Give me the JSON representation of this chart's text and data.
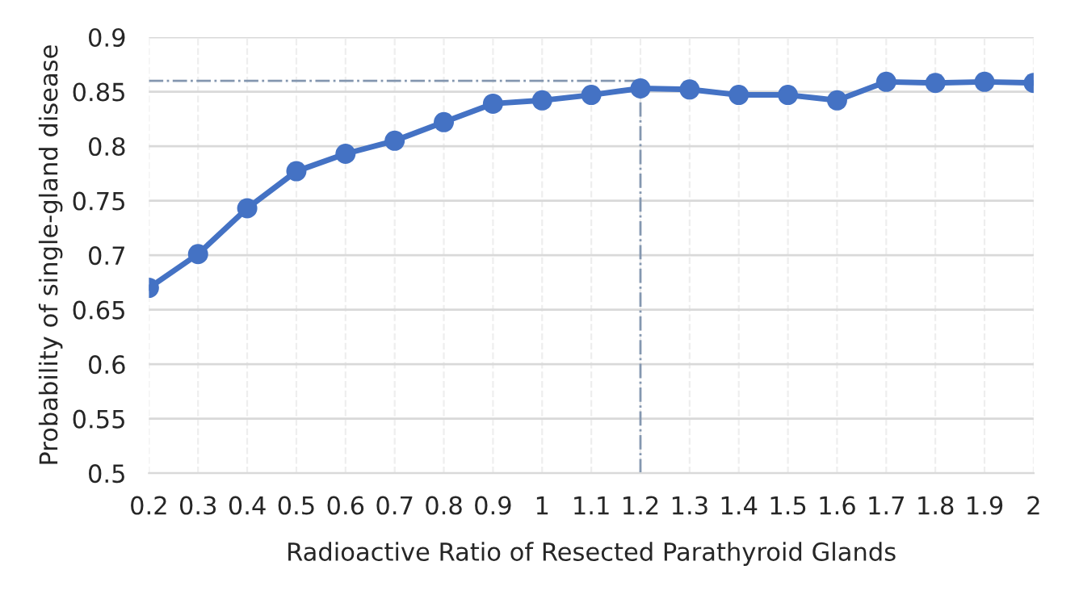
{
  "chart_data": {
    "type": "line",
    "xlabel": "Radioactive Ratio of Resected Parathyroid Glands",
    "ylabel": "Probability of single-gland disease",
    "categories": [
      "0.2",
      "0.3",
      "0.4",
      "0.5",
      "0.6",
      "0.7",
      "0.8",
      "0.9",
      "1",
      "1.1",
      "1.2",
      "1.3",
      "1.4",
      "1.5",
      "1.6",
      "1.7",
      "1.8",
      "1.9",
      "2"
    ],
    "series": [
      {
        "color": "#4472c4",
        "values": [
          0.67,
          0.701,
          0.743,
          0.777,
          0.793,
          0.805,
          0.822,
          0.839,
          0.842,
          0.847,
          0.853,
          0.852,
          0.847,
          0.847,
          0.842,
          0.859,
          0.858,
          0.859,
          0.858
        ]
      }
    ],
    "ylim": [
      0.5,
      0.9
    ],
    "yticks": [
      0.5,
      0.55,
      0.6,
      0.65,
      0.7,
      0.75,
      0.8,
      0.85,
      0.9
    ],
    "ref_lines": [
      {
        "axis": "y",
        "value": 0.86,
        "color": "#8497b0",
        "line_style": "dashdot"
      },
      {
        "axis": "x",
        "value": "1.2",
        "color": "#8497b0",
        "line_style": "dashdot"
      }
    ],
    "grid": true,
    "marker": "circle",
    "line_style": "solid",
    "legend": false
  }
}
